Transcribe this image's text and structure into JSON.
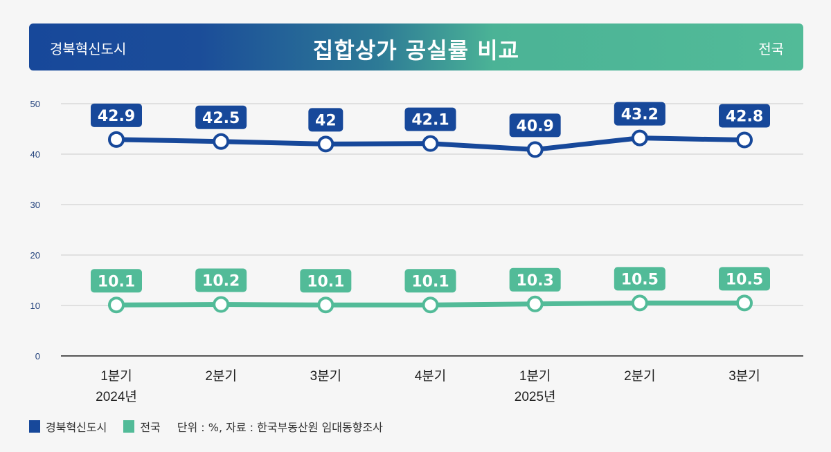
{
  "header": {
    "left_label": "경북혁신도시",
    "title": "집합상가 공실률 비교",
    "right_label": "전국"
  },
  "colors": {
    "series_1": "#17489a",
    "series_2": "#52bb98",
    "grid": "#c9c9c9",
    "axis_text": "#1f3f7a"
  },
  "legend": {
    "items": [
      {
        "label": "경북혁신도시",
        "color": "#17489a"
      },
      {
        "label": "전국",
        "color": "#52bb98"
      }
    ],
    "note": "단위 : %, 자료 : 한국부동산원 임대동향조사"
  },
  "chart_data": {
    "type": "line",
    "title": "집합상가 공실률 비교",
    "xlabel": "",
    "ylabel": "",
    "categories": [
      "1분기",
      "2분기",
      "3분기",
      "4분기",
      "1분기",
      "2분기",
      "3분기"
    ],
    "category_years": [
      "2024년",
      "",
      "",
      "",
      "2025년",
      "",
      ""
    ],
    "series": [
      {
        "name": "경북혁신도시",
        "values": [
          42.9,
          42.5,
          42,
          42.1,
          40.9,
          43.2,
          42.8
        ],
        "labels": [
          "42.9",
          "42.5",
          "42",
          "42.1",
          "40.9",
          "43.2",
          "42.8"
        ]
      },
      {
        "name": "전국",
        "values": [
          10.1,
          10.2,
          10.1,
          10.1,
          10.3,
          10.5,
          10.5
        ],
        "labels": [
          "10.1",
          "10.2",
          "10.1",
          "10.1",
          "10.3",
          "10.5",
          "10.5"
        ]
      }
    ],
    "yticks": [
      0,
      10,
      20,
      30,
      40,
      50
    ],
    "ylim": [
      0,
      50
    ],
    "grid": true,
    "legend_position": "bottom-left",
    "unit": "%"
  }
}
